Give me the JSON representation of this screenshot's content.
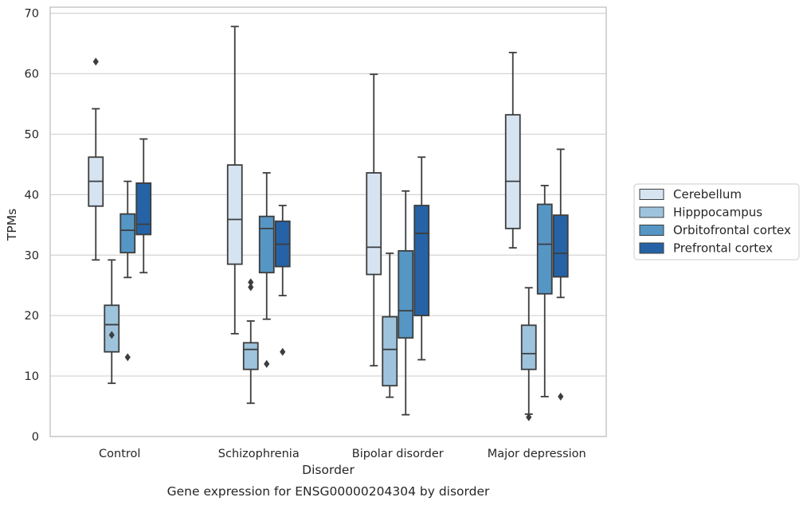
{
  "chart_data": {
    "type": "box",
    "title": "",
    "caption": "Gene expression for ENSG00000204304 by disorder",
    "xlabel": "Disorder",
    "ylabel": "TPMs",
    "ylim": [
      0,
      71
    ],
    "yticks": [
      0,
      10,
      20,
      30,
      40,
      50,
      60,
      70
    ],
    "grid": true,
    "legend_position": "right",
    "categories": [
      "Control",
      "Schizophrenia",
      "Bipolar disorder",
      "Major depression"
    ],
    "series": [
      {
        "name": "Cerebellum",
        "color": "#d6e4f2",
        "boxes": [
          {
            "whisker_low": 29.2,
            "q1": 38.1,
            "median": 42.2,
            "q3": 46.2,
            "whisker_high": 54.2,
            "outliers": [
              62.0
            ]
          },
          {
            "whisker_low": 17.0,
            "q1": 28.5,
            "median": 35.9,
            "q3": 44.9,
            "whisker_high": 67.8,
            "outliers": []
          },
          {
            "whisker_low": 11.7,
            "q1": 26.8,
            "median": 31.3,
            "q3": 43.6,
            "whisker_high": 59.9,
            "outliers": []
          },
          {
            "whisker_low": 31.2,
            "q1": 34.4,
            "median": 42.2,
            "q3": 53.2,
            "whisker_high": 63.5,
            "outliers": []
          }
        ]
      },
      {
        "name": "Hipppocampus",
        "color": "#9ec4dd",
        "boxes": [
          {
            "whisker_low": 8.8,
            "q1": 14.0,
            "median": 18.5,
            "q3": 21.7,
            "whisker_high": 29.2,
            "outliers": [
              16.8
            ]
          },
          {
            "whisker_low": 5.5,
            "q1": 11.1,
            "median": 14.4,
            "q3": 15.5,
            "whisker_high": 19.1,
            "outliers": [
              24.7,
              25.5
            ]
          },
          {
            "whisker_low": 6.5,
            "q1": 8.4,
            "median": 14.4,
            "q3": 19.8,
            "whisker_high": 30.3,
            "outliers": []
          },
          {
            "whisker_low": 3.7,
            "q1": 11.1,
            "median": 13.7,
            "q3": 18.4,
            "whisker_high": 24.6,
            "outliers": [
              3.2
            ]
          }
        ]
      },
      {
        "name": "Orbitofrontal cortex",
        "color": "#5596c5",
        "boxes": [
          {
            "whisker_low": 26.3,
            "q1": 30.4,
            "median": 34.1,
            "q3": 36.8,
            "whisker_high": 42.2,
            "outliers": [
              13.1
            ]
          },
          {
            "whisker_low": 19.4,
            "q1": 27.1,
            "median": 34.4,
            "q3": 36.4,
            "whisker_high": 43.6,
            "outliers": [
              12.0
            ]
          },
          {
            "whisker_low": 3.6,
            "q1": 16.3,
            "median": 20.8,
            "q3": 30.7,
            "whisker_high": 40.6,
            "outliers": []
          },
          {
            "whisker_low": 6.6,
            "q1": 23.6,
            "median": 31.8,
            "q3": 38.4,
            "whisker_high": 41.5,
            "outliers": []
          }
        ]
      },
      {
        "name": "Prefrontal cortex",
        "color": "#2563a6",
        "boxes": [
          {
            "whisker_low": 27.1,
            "q1": 33.4,
            "median": 35.1,
            "q3": 41.9,
            "whisker_high": 49.2,
            "outliers": []
          },
          {
            "whisker_low": 23.3,
            "q1": 28.1,
            "median": 31.8,
            "q3": 35.6,
            "whisker_high": 38.2,
            "outliers": [
              14.0
            ]
          },
          {
            "whisker_low": 12.7,
            "q1": 20.0,
            "median": 33.6,
            "q3": 38.2,
            "whisker_high": 46.2,
            "outliers": []
          },
          {
            "whisker_low": 23.0,
            "q1": 26.4,
            "median": 30.3,
            "q3": 36.6,
            "whisker_high": 47.5,
            "outliers": [
              6.6
            ]
          }
        ]
      }
    ]
  }
}
